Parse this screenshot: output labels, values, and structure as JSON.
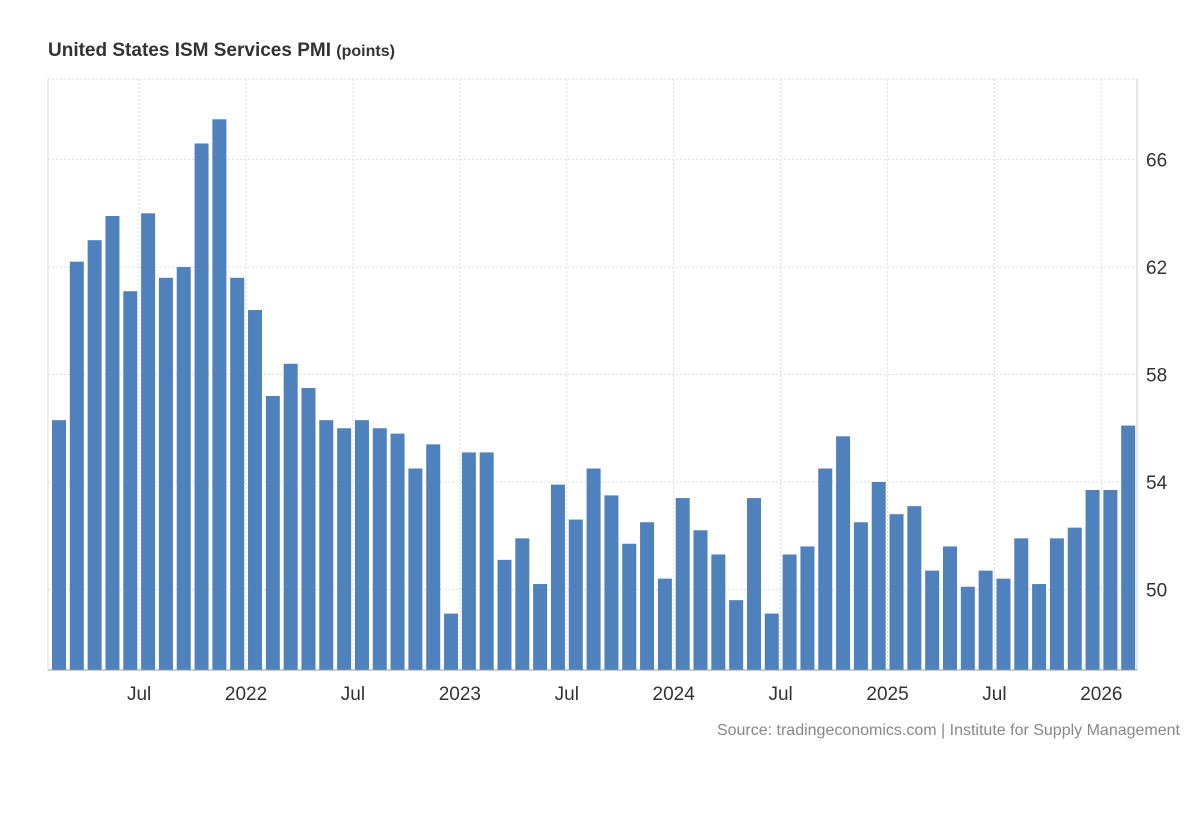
{
  "chart_data": {
    "type": "bar",
    "title": "United States ISM Services PMI",
    "unit": "(points)",
    "source": "Source: tradingeconomics.com | Institute for Supply Management",
    "color": "#4f81bd",
    "x_start": "2021-02",
    "x_end": "2026-02",
    "x_tick_labels": [
      {
        "month": "2021-07",
        "label": "Jul"
      },
      {
        "month": "2022-01",
        "label": "2022"
      },
      {
        "month": "2022-07",
        "label": "Jul"
      },
      {
        "month": "2023-01",
        "label": "2023"
      },
      {
        "month": "2023-07",
        "label": "Jul"
      },
      {
        "month": "2024-01",
        "label": "2024"
      },
      {
        "month": "2024-07",
        "label": "Jul"
      },
      {
        "month": "2025-01",
        "label": "2025"
      },
      {
        "month": "2025-07",
        "label": "Jul"
      },
      {
        "month": "2026-01",
        "label": "2026"
      }
    ],
    "y_ticks": [
      50,
      54,
      58,
      62,
      66
    ],
    "ylim": [
      47,
      69
    ],
    "y_axis_position": "right",
    "grid": true,
    "values": [
      56.3,
      62.2,
      63.0,
      63.9,
      61.1,
      64.0,
      61.6,
      62.0,
      66.6,
      67.5,
      61.6,
      60.4,
      57.2,
      58.4,
      57.5,
      56.3,
      56.0,
      56.3,
      56.0,
      55.8,
      54.5,
      55.4,
      49.1,
      55.1,
      55.1,
      51.1,
      51.9,
      50.2,
      53.9,
      52.6,
      54.5,
      53.5,
      51.7,
      52.5,
      50.4,
      53.4,
      52.2,
      51.3,
      49.6,
      53.4,
      49.1,
      51.3,
      51.6,
      54.5,
      55.7,
      52.5,
      54.0,
      52.8,
      53.1,
      50.7,
      51.6,
      50.1,
      50.7,
      50.4,
      51.9,
      50.2,
      51.9,
      52.3,
      53.7,
      53.7,
      56.1
    ]
  }
}
